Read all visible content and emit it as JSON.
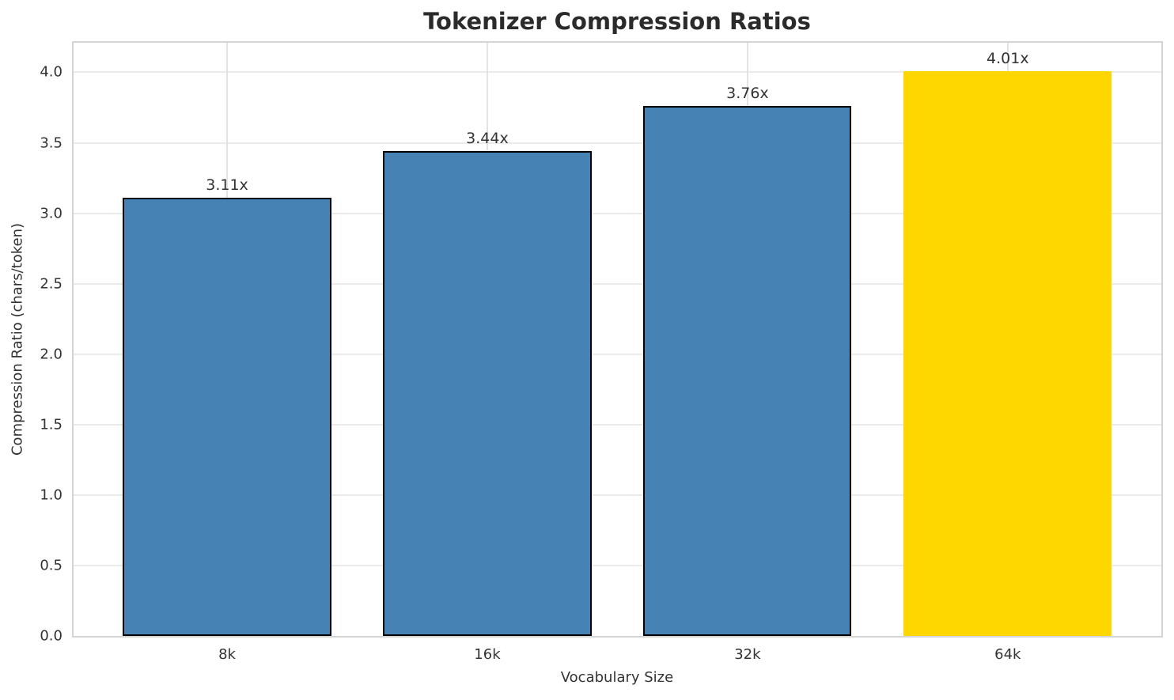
{
  "chart_data": {
    "type": "bar",
    "title": "Tokenizer Compression Ratios",
    "xlabel": "Vocabulary Size",
    "ylabel": "Compression Ratio (chars/token)",
    "categories": [
      "8k",
      "16k",
      "32k",
      "64k"
    ],
    "values": [
      3.11,
      3.44,
      3.76,
      4.01
    ],
    "value_labels": [
      "3.11x",
      "3.44x",
      "3.76x",
      "4.01x"
    ],
    "bar_colors": [
      "#4682B4",
      "#4682B4",
      "#4682B4",
      "#FFD700"
    ],
    "bar_edge_colors": [
      "#000000",
      "#000000",
      "#000000",
      "none"
    ],
    "base_color": "#4682B4",
    "highlight_color": "#FFD700",
    "yticks": [
      0.0,
      0.5,
      1.0,
      1.5,
      2.0,
      2.5,
      3.0,
      3.5,
      4.0
    ],
    "ytick_labels": [
      "0.0",
      "0.5",
      "1.0",
      "1.5",
      "2.0",
      "2.5",
      "3.0",
      "3.5",
      "4.0"
    ],
    "ylim": [
      0,
      4.21
    ],
    "xlim": [
      -0.59,
      3.59
    ],
    "bar_width": 0.8,
    "grid": "both",
    "grid_color": "#ebebeb",
    "spine_color": "#d4d4d4",
    "text_color": "#333333",
    "title_color": "#2b2b2b",
    "legend_position": "none"
  }
}
